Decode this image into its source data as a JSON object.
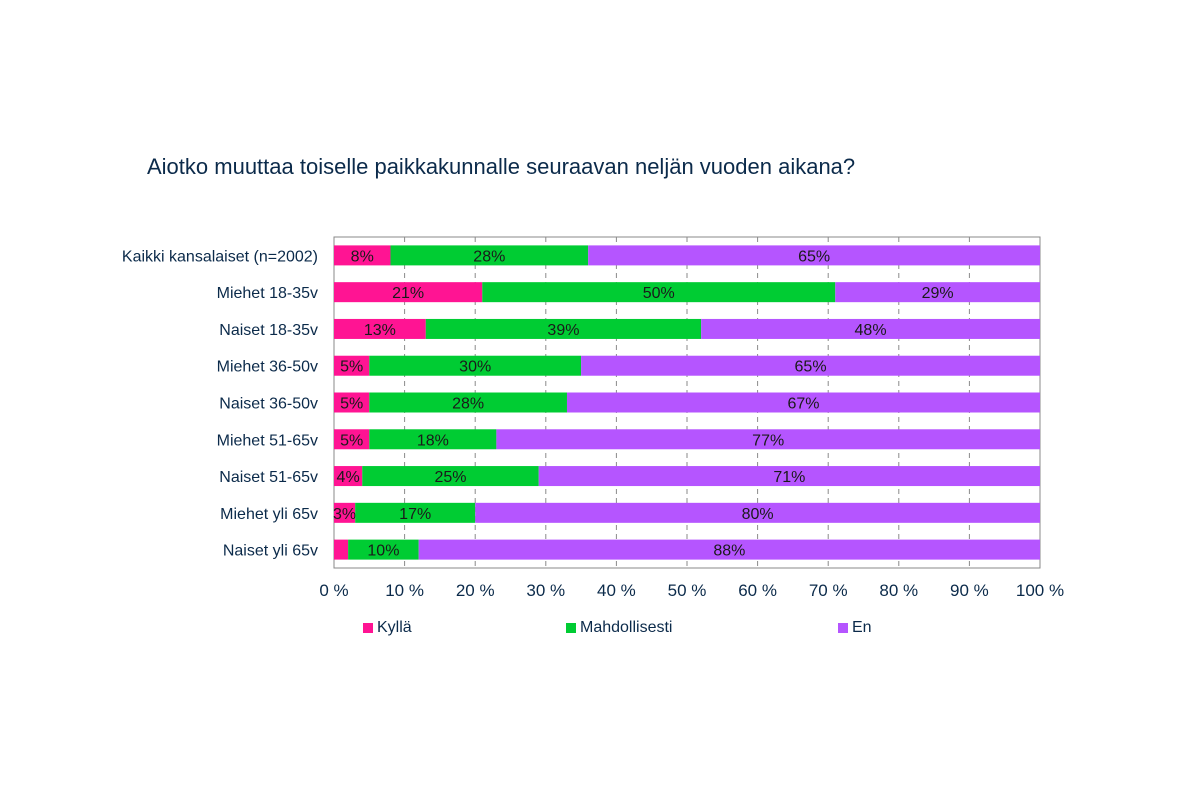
{
  "chart_data": {
    "type": "bar",
    "orientation": "horizontal",
    "stacked": true,
    "title": "Aiotko muuttaa toiselle paikkakunnalle seuraavan neljän vuoden aikana?",
    "categories": [
      "Kaikki kansalaiset (n=2002)",
      "Miehet 18-35v",
      "Naiset 18-35v",
      "Miehet 36-50v",
      "Naiset 36-50v",
      "Miehet 51-65v",
      "Naiset 51-65v",
      "Miehet yli 65v",
      "Naiset yli 65v"
    ],
    "series": [
      {
        "name": "Kyllä",
        "color": "#ff1493",
        "values": [
          8,
          21,
          13,
          5,
          5,
          5,
          4,
          3,
          2
        ],
        "labels": [
          "8%",
          "21%",
          "13%",
          "5%",
          "5%",
          "5%",
          "4%",
          "3%",
          ""
        ]
      },
      {
        "name": "Mahdollisesti",
        "color": "#00cc33",
        "values": [
          28,
          50,
          39,
          30,
          28,
          18,
          25,
          17,
          10
        ],
        "labels": [
          "28%",
          "50%",
          "39%",
          "30%",
          "28%",
          "18%",
          "25%",
          "17%",
          "10%"
        ]
      },
      {
        "name": "En",
        "color": "#b555ff",
        "values": [
          65,
          29,
          48,
          65,
          67,
          77,
          71,
          80,
          88
        ],
        "labels": [
          "65%",
          "29%",
          "48%",
          "65%",
          "67%",
          "77%",
          "71%",
          "80%",
          "88%"
        ]
      }
    ],
    "x_ticks": [
      "0 %",
      "10 %",
      "20 %",
      "30 %",
      "40 %",
      "50 %",
      "60 %",
      "70 %",
      "80 %",
      "90 %",
      "100 %"
    ],
    "xlim": [
      0,
      100
    ],
    "grid": "vertical dashed",
    "legend_position": "bottom"
  }
}
